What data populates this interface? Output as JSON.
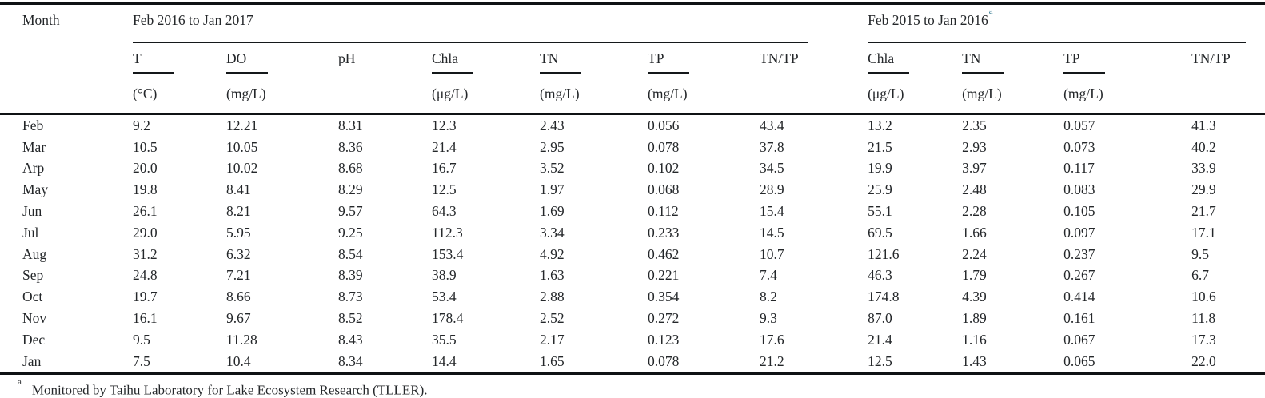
{
  "page": {
    "background": "#ffffff",
    "text_color": "#24272a",
    "rule_color": "#0f1214",
    "footnote_link_color": "#33788f"
  },
  "table": {
    "month_header": "Month",
    "groups": [
      {
        "label": "Feb 2016 to Jan 2017",
        "footnote_marker": ""
      },
      {
        "label": "Feb 2015 to Jan 2016",
        "footnote_marker": "a"
      }
    ],
    "columns": [
      {
        "label": "T",
        "unit": "(°C)"
      },
      {
        "label": "DO",
        "unit": "(mg/L)"
      },
      {
        "label": "pH",
        "unit": ""
      },
      {
        "label": "Chla",
        "unit": "(μg/L)"
      },
      {
        "label": "TN",
        "unit": "(mg/L)"
      },
      {
        "label": "TP",
        "unit": "(mg/L)"
      },
      {
        "label": "TN/TP",
        "unit": ""
      },
      {
        "label": "Chla",
        "unit": "(μg/L)"
      },
      {
        "label": "TN",
        "unit": "(mg/L)"
      },
      {
        "label": "TP",
        "unit": "(mg/L)"
      },
      {
        "label": "TN/TP",
        "unit": ""
      }
    ],
    "rows": [
      {
        "month": "Feb",
        "values": [
          "9.2",
          "12.21",
          "8.31",
          "12.3",
          "2.43",
          "0.056",
          "43.4",
          "13.2",
          "2.35",
          "0.057",
          "41.3"
        ]
      },
      {
        "month": "Mar",
        "values": [
          "10.5",
          "10.05",
          "8.36",
          "21.4",
          "2.95",
          "0.078",
          "37.8",
          "21.5",
          "2.93",
          "0.073",
          "40.2"
        ]
      },
      {
        "month": "Arp",
        "values": [
          "20.0",
          "10.02",
          "8.68",
          "16.7",
          "3.52",
          "0.102",
          "34.5",
          "19.9",
          "3.97",
          "0.117",
          "33.9"
        ]
      },
      {
        "month": "May",
        "values": [
          "19.8",
          "8.41",
          "8.29",
          "12.5",
          "1.97",
          "0.068",
          "28.9",
          "25.9",
          "2.48",
          "0.083",
          "29.9"
        ]
      },
      {
        "month": "Jun",
        "values": [
          "26.1",
          "8.21",
          "9.57",
          "64.3",
          "1.69",
          "0.112",
          "15.4",
          "55.1",
          "2.28",
          "0.105",
          "21.7"
        ]
      },
      {
        "month": "Jul",
        "values": [
          "29.0",
          "5.95",
          "9.25",
          "112.3",
          "3.34",
          "0.233",
          "14.5",
          "69.5",
          "1.66",
          "0.097",
          "17.1"
        ]
      },
      {
        "month": "Aug",
        "values": [
          "31.2",
          "6.32",
          "8.54",
          "153.4",
          "4.92",
          "0.462",
          "10.7",
          "121.6",
          "2.24",
          "0.237",
          "9.5"
        ]
      },
      {
        "month": "Sep",
        "values": [
          "24.8",
          "7.21",
          "8.39",
          "38.9",
          "1.63",
          "0.221",
          "7.4",
          "46.3",
          "1.79",
          "0.267",
          "6.7"
        ]
      },
      {
        "month": "Oct",
        "values": [
          "19.7",
          "8.66",
          "8.73",
          "53.4",
          "2.88",
          "0.354",
          "8.2",
          "174.8",
          "4.39",
          "0.414",
          "10.6"
        ]
      },
      {
        "month": "Nov",
        "values": [
          "16.1",
          "9.67",
          "8.52",
          "178.4",
          "2.52",
          "0.272",
          "9.3",
          "87.0",
          "1.89",
          "0.161",
          "11.8"
        ]
      },
      {
        "month": "Dec",
        "values": [
          "9.5",
          "11.28",
          "8.43",
          "35.5",
          "2.17",
          "0.123",
          "17.6",
          "21.4",
          "1.16",
          "0.067",
          "17.3"
        ]
      },
      {
        "month": "Jan",
        "values": [
          "7.5",
          "10.4",
          "8.34",
          "14.4",
          "1.65",
          "0.078",
          "21.2",
          "12.5",
          "1.43",
          "0.065",
          "22.0"
        ]
      }
    ]
  },
  "footnote": {
    "marker": "a",
    "text": "Monitored by Taihu Laboratory for Lake Ecosystem Research (TLLER)."
  }
}
